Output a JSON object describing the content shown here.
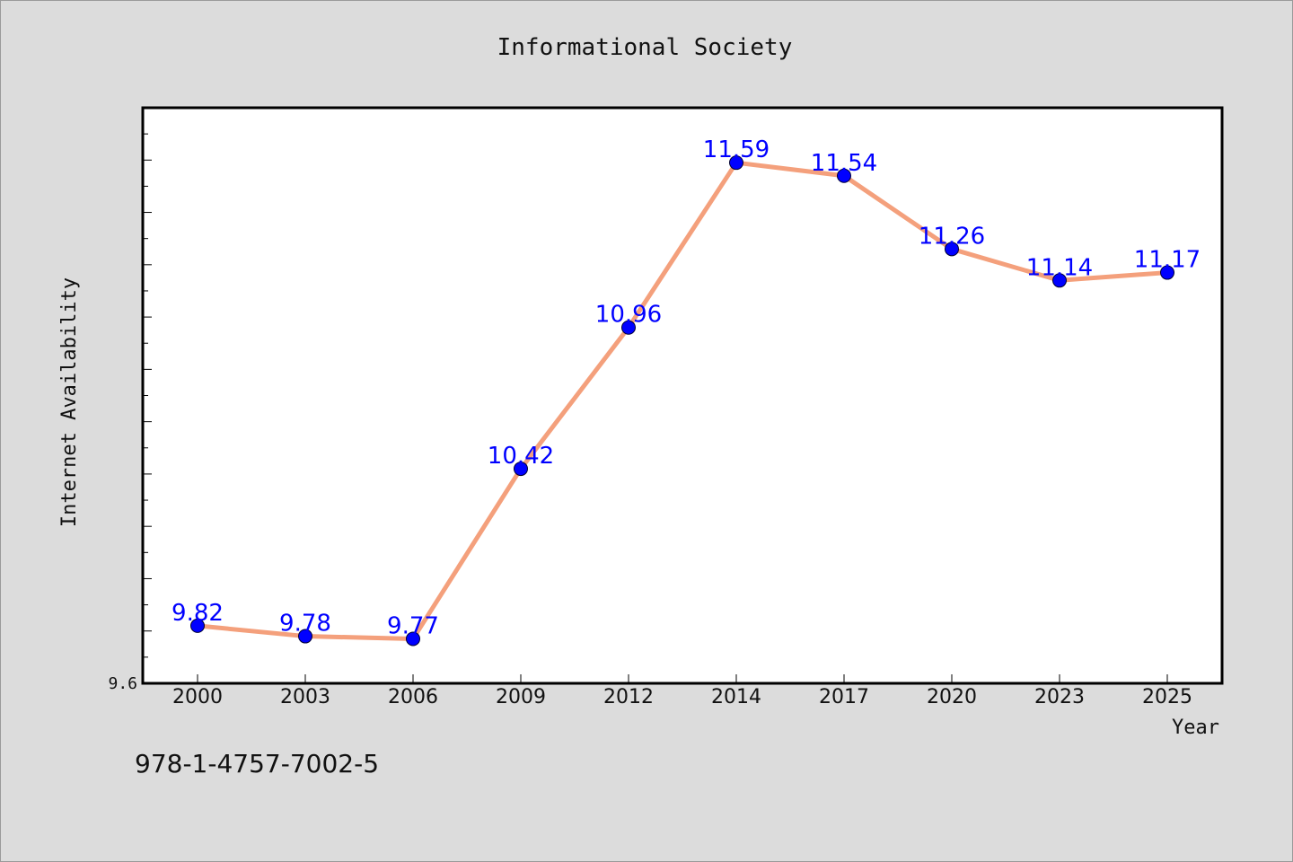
{
  "chart_data": {
    "type": "line",
    "title": "Informational Society",
    "xlabel": "Year",
    "ylabel": "Internet Availability",
    "categories": [
      "2000",
      "2003",
      "2006",
      "2009",
      "2012",
      "2014",
      "2017",
      "2020",
      "2023",
      "2025"
    ],
    "values": [
      9.82,
      9.78,
      9.77,
      10.42,
      10.96,
      11.59,
      11.54,
      11.26,
      11.14,
      11.17
    ],
    "data_labels": [
      "9.82",
      "9.78",
      "9.77",
      "10.42",
      "10.96",
      "11.59",
      "11.54",
      "11.26",
      "11.14",
      "11.17"
    ],
    "yticks": [
      "9.6"
    ],
    "ylim": [
      9.6,
      11.8
    ],
    "line_color": "#f4a07c",
    "marker_color": "#0000ff",
    "label_color": "#0000ff",
    "grid": false
  },
  "footer": {
    "isbn": "978-1-4757-7002-5"
  }
}
